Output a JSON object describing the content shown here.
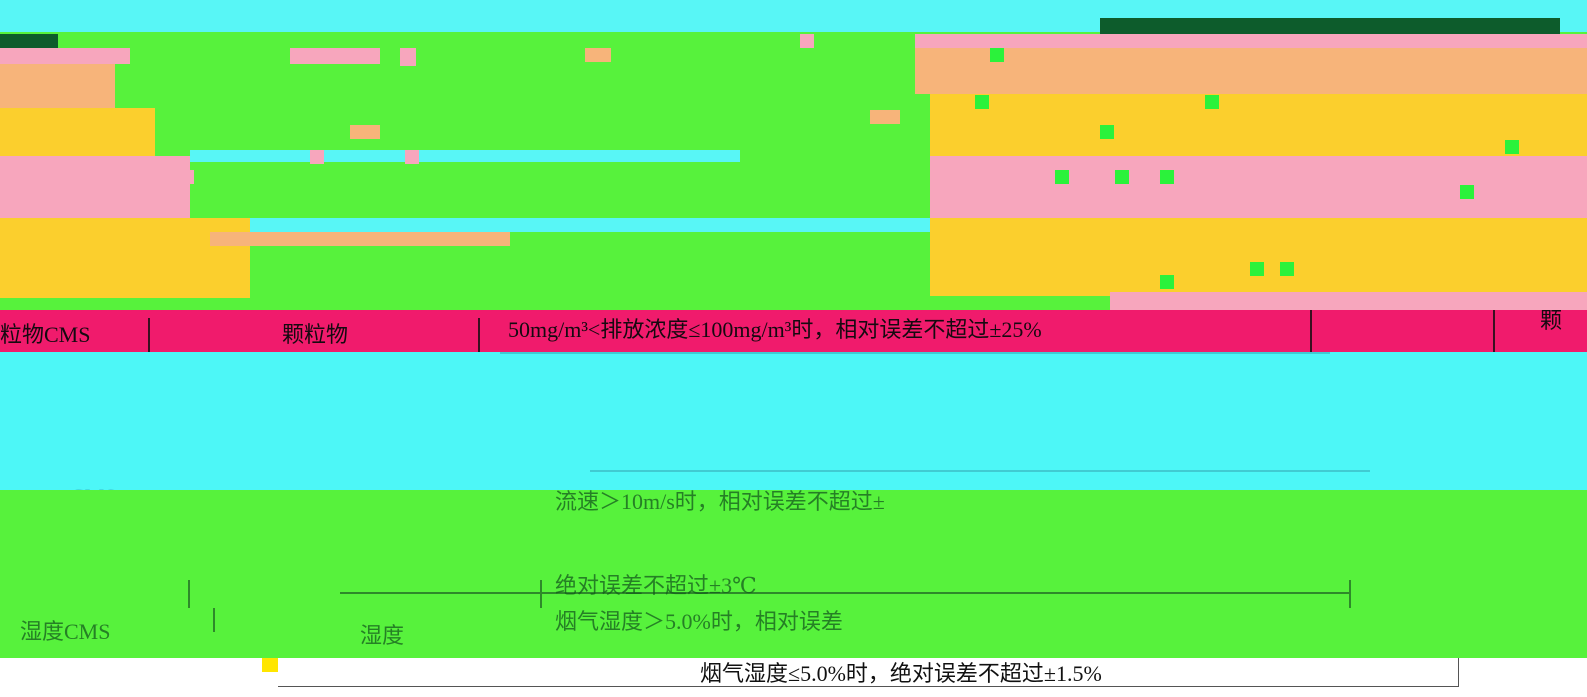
{
  "table": {
    "row_main": {
      "col1_label": "粒物CMS",
      "col2_label": "颗粒物",
      "col3_text": "50mg/m³<排放浓度≤100mg/m³时，相对误差不超过±25%",
      "col4_label": "颗"
    },
    "row_cms": {
      "col1_label": "CMS",
      "col3_text": "流速＞10m/s时，相对误差不超过±"
    },
    "row_temp": {
      "col3_text": "绝对误差不超过±3℃"
    },
    "row_humidity": {
      "col1_label": "湿度CMS",
      "col2_label": "湿度",
      "col3_text": "烟气湿度＞5.0%时，相对误差"
    },
    "row_bottom": {
      "col3_text": "烟气湿度≤5.0%时，绝对误差不超过±1.5%"
    }
  }
}
